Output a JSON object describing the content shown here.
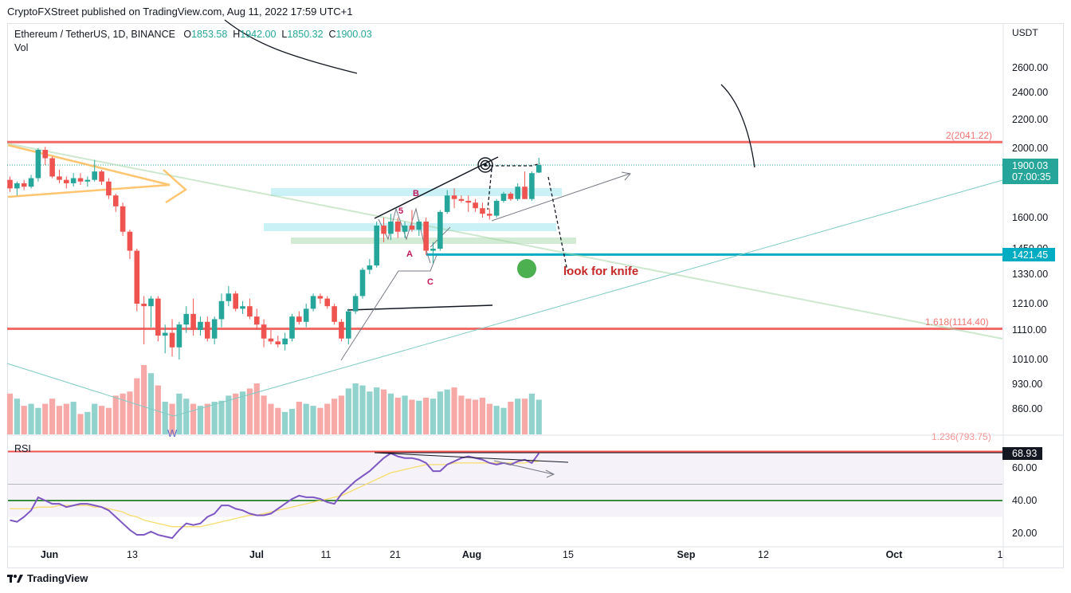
{
  "header": {
    "text": "CryptoFXStreet published on TradingView.com, Aug 11, 2022 17:59 UTC+1"
  },
  "legend": {
    "symbol": "Ethereum / TetherUS, 1D, BINANCE",
    "o_label": "O",
    "o": "1853.58",
    "h_label": "H",
    "h": "1942.00",
    "l_label": "L",
    "l": "1850.32",
    "c_label": "C",
    "c": "1900.03",
    "vol": "Vol"
  },
  "rsi_label": "RSI",
  "currency": "USDT",
  "footer": {
    "brand": "TradingView"
  },
  "colors": {
    "up": "#26a69a",
    "down": "#ef5350",
    "vol_up": "#92d2cc",
    "vol_down": "#f7a9a7",
    "rsi": "#7e57c2",
    "rsi_ma": "#f7dd6b",
    "resistance": "#ef5350",
    "support": "#00acc1"
  },
  "price_ticks": [
    "2600.00",
    "2400.00",
    "2200.00",
    "2000.00",
    "1900.00",
    "1600.00",
    "1450.00",
    "1330.00",
    "1210.00",
    "1110.00",
    "1010.00",
    "930.00",
    "860.00"
  ],
  "rsi_ticks": [
    "60.00",
    "40.00",
    "20.00"
  ],
  "date_ticks": [
    "Jun",
    "13",
    "Jul",
    "11",
    "21",
    "Aug",
    "15",
    "Sep",
    "12",
    "Oct",
    "1"
  ],
  "price_labels": {
    "last_price": "1900.03",
    "countdown": "07:00:35",
    "support": "1421.45",
    "rsi_value": "68.93"
  },
  "annotations": {
    "fib_top": "2(2041.22)",
    "fib_mid": "1.618(1114.40)",
    "fib_bottom": "1.236(793.75)",
    "knife": "look for knife",
    "wave_b": "B",
    "wave_a": "A",
    "wave_c": "C",
    "wave_5": "5",
    "wave_w": "W"
  },
  "chart_data": {
    "type": "candlestick",
    "title": "Ethereum / TetherUS, 1D, BINANCE",
    "currency": "USDT",
    "candles": [
      {
        "o": 1810,
        "h": 1830,
        "l": 1740,
        "c": 1760
      },
      {
        "o": 1760,
        "h": 1800,
        "l": 1720,
        "c": 1790
      },
      {
        "o": 1790,
        "h": 1810,
        "l": 1750,
        "c": 1770
      },
      {
        "o": 1770,
        "h": 1840,
        "l": 1760,
        "c": 1820
      },
      {
        "o": 1820,
        "h": 2000,
        "l": 1800,
        "c": 1990
      },
      {
        "o": 1990,
        "h": 2010,
        "l": 1900,
        "c": 1940
      },
      {
        "o": 1940,
        "h": 1950,
        "l": 1820,
        "c": 1830
      },
      {
        "o": 1830,
        "h": 1870,
        "l": 1790,
        "c": 1810
      },
      {
        "o": 1810,
        "h": 1830,
        "l": 1760,
        "c": 1790
      },
      {
        "o": 1790,
        "h": 1850,
        "l": 1770,
        "c": 1820
      },
      {
        "o": 1820,
        "h": 1850,
        "l": 1780,
        "c": 1800
      },
      {
        "o": 1800,
        "h": 1830,
        "l": 1770,
        "c": 1810
      },
      {
        "o": 1810,
        "h": 1930,
        "l": 1800,
        "c": 1860
      },
      {
        "o": 1860,
        "h": 1870,
        "l": 1780,
        "c": 1800
      },
      {
        "o": 1800,
        "h": 1820,
        "l": 1700,
        "c": 1720
      },
      {
        "o": 1720,
        "h": 1730,
        "l": 1630,
        "c": 1660
      },
      {
        "o": 1660,
        "h": 1680,
        "l": 1510,
        "c": 1530
      },
      {
        "o": 1530,
        "h": 1540,
        "l": 1400,
        "c": 1440
      },
      {
        "o": 1440,
        "h": 1450,
        "l": 1180,
        "c": 1210
      },
      {
        "o": 1210,
        "h": 1240,
        "l": 1060,
        "c": 1200
      },
      {
        "o": 1200,
        "h": 1240,
        "l": 1120,
        "c": 1230
      },
      {
        "o": 1230,
        "h": 1240,
        "l": 1070,
        "c": 1090
      },
      {
        "o": 1090,
        "h": 1130,
        "l": 1030,
        "c": 1100
      },
      {
        "o": 1100,
        "h": 1150,
        "l": 1020,
        "c": 1050
      },
      {
        "o": 1050,
        "h": 1140,
        "l": 1010,
        "c": 1130
      },
      {
        "o": 1130,
        "h": 1200,
        "l": 1100,
        "c": 1170
      },
      {
        "o": 1170,
        "h": 1230,
        "l": 1090,
        "c": 1110
      },
      {
        "o": 1110,
        "h": 1160,
        "l": 1090,
        "c": 1140
      },
      {
        "o": 1140,
        "h": 1160,
        "l": 1070,
        "c": 1080
      },
      {
        "o": 1080,
        "h": 1160,
        "l": 1060,
        "c": 1150
      },
      {
        "o": 1150,
        "h": 1250,
        "l": 1120,
        "c": 1220
      },
      {
        "o": 1220,
        "h": 1280,
        "l": 1200,
        "c": 1250
      },
      {
        "o": 1250,
        "h": 1260,
        "l": 1180,
        "c": 1190
      },
      {
        "o": 1190,
        "h": 1220,
        "l": 1170,
        "c": 1200
      },
      {
        "o": 1200,
        "h": 1230,
        "l": 1150,
        "c": 1160
      },
      {
        "o": 1160,
        "h": 1190,
        "l": 1110,
        "c": 1130
      },
      {
        "o": 1130,
        "h": 1150,
        "l": 1050,
        "c": 1080
      },
      {
        "o": 1080,
        "h": 1110,
        "l": 1060,
        "c": 1070
      },
      {
        "o": 1070,
        "h": 1090,
        "l": 1050,
        "c": 1060
      },
      {
        "o": 1060,
        "h": 1100,
        "l": 1040,
        "c": 1080
      },
      {
        "o": 1080,
        "h": 1170,
        "l": 1070,
        "c": 1160
      },
      {
        "o": 1160,
        "h": 1180,
        "l": 1130,
        "c": 1140
      },
      {
        "o": 1140,
        "h": 1210,
        "l": 1120,
        "c": 1190
      },
      {
        "o": 1190,
        "h": 1250,
        "l": 1180,
        "c": 1240
      },
      {
        "o": 1240,
        "h": 1250,
        "l": 1210,
        "c": 1230
      },
      {
        "o": 1230,
        "h": 1240,
        "l": 1190,
        "c": 1200
      },
      {
        "o": 1200,
        "h": 1210,
        "l": 1130,
        "c": 1140
      },
      {
        "o": 1140,
        "h": 1150,
        "l": 1070,
        "c": 1080
      },
      {
        "o": 1080,
        "h": 1190,
        "l": 1060,
        "c": 1180
      },
      {
        "o": 1180,
        "h": 1250,
        "l": 1170,
        "c": 1240
      },
      {
        "o": 1240,
        "h": 1360,
        "l": 1230,
        "c": 1350
      },
      {
        "o": 1350,
        "h": 1400,
        "l": 1330,
        "c": 1370
      },
      {
        "o": 1370,
        "h": 1580,
        "l": 1360,
        "c": 1560
      },
      {
        "o": 1560,
        "h": 1600,
        "l": 1480,
        "c": 1520
      },
      {
        "o": 1520,
        "h": 1620,
        "l": 1490,
        "c": 1580
      },
      {
        "o": 1580,
        "h": 1600,
        "l": 1500,
        "c": 1530
      },
      {
        "o": 1530,
        "h": 1580,
        "l": 1500,
        "c": 1560
      },
      {
        "o": 1560,
        "h": 1640,
        "l": 1530,
        "c": 1540
      },
      {
        "o": 1540,
        "h": 1590,
        "l": 1510,
        "c": 1580
      },
      {
        "o": 1580,
        "h": 1600,
        "l": 1420,
        "c": 1440
      },
      {
        "o": 1440,
        "h": 1480,
        "l": 1380,
        "c": 1450
      },
      {
        "o": 1450,
        "h": 1640,
        "l": 1440,
        "c": 1630
      },
      {
        "o": 1630,
        "h": 1750,
        "l": 1620,
        "c": 1720
      },
      {
        "o": 1720,
        "h": 1760,
        "l": 1650,
        "c": 1700
      },
      {
        "o": 1700,
        "h": 1720,
        "l": 1680,
        "c": 1690
      },
      {
        "o": 1690,
        "h": 1720,
        "l": 1630,
        "c": 1680
      },
      {
        "o": 1680,
        "h": 1700,
        "l": 1630,
        "c": 1650
      },
      {
        "o": 1650,
        "h": 1680,
        "l": 1600,
        "c": 1620
      },
      {
        "o": 1620,
        "h": 1650,
        "l": 1590,
        "c": 1610
      },
      {
        "o": 1610,
        "h": 1700,
        "l": 1600,
        "c": 1690
      },
      {
        "o": 1690,
        "h": 1740,
        "l": 1680,
        "c": 1730
      },
      {
        "o": 1730,
        "h": 1740,
        "l": 1690,
        "c": 1700
      },
      {
        "o": 1700,
        "h": 1790,
        "l": 1690,
        "c": 1770
      },
      {
        "o": 1770,
        "h": 1860,
        "l": 1700,
        "c": 1700
      },
      {
        "o": 1700,
        "h": 1860,
        "l": 1690,
        "c": 1850
      },
      {
        "o": 1853.58,
        "h": 1942.0,
        "l": 1850.32,
        "c": 1900.03
      }
    ],
    "volume": [
      40,
      35,
      28,
      30,
      26,
      30,
      35,
      28,
      30,
      32,
      20,
      22,
      30,
      28,
      26,
      38,
      40,
      42,
      55,
      68,
      60,
      48,
      32,
      30,
      40,
      35,
      30,
      28,
      30,
      32,
      33,
      38,
      40,
      42,
      45,
      50,
      38,
      30,
      26,
      22,
      25,
      32,
      30,
      28,
      26,
      30,
      35,
      38,
      45,
      50,
      48,
      42,
      46,
      44,
      40,
      36,
      38,
      34,
      33,
      36,
      35,
      42,
      44,
      46,
      38,
      35,
      34,
      36,
      30,
      28,
      26,
      32,
      35,
      35,
      40,
      34
    ],
    "levels": {
      "resistance_fib_2": 2041.22,
      "support": 1421.45,
      "fib_1618": 1114.4,
      "fib_1236": 793.75
    },
    "rsi": {
      "values": [
        28,
        27,
        30,
        34,
        42,
        40,
        38,
        38,
        36,
        37,
        38,
        38,
        37,
        36,
        34,
        30,
        26,
        22,
        19,
        19,
        21,
        19,
        18,
        17,
        22,
        26,
        25,
        26,
        30,
        32,
        37,
        37,
        35,
        34,
        32,
        31,
        31,
        32,
        35,
        38,
        41,
        43,
        42,
        42,
        41,
        39,
        38,
        44,
        48,
        52,
        55,
        58,
        62,
        66,
        68.9,
        67,
        66,
        66,
        65,
        63,
        58,
        58,
        62,
        64,
        66,
        67,
        66,
        65,
        63,
        62,
        63,
        62,
        64,
        65,
        63,
        68.93
      ],
      "ma_values": [
        35,
        35,
        35,
        35,
        36,
        36,
        36,
        37,
        37,
        37,
        37,
        37,
        36,
        36,
        35,
        34,
        33,
        31,
        30,
        28,
        27,
        26,
        25,
        24,
        24,
        24,
        24,
        24,
        25,
        26,
        27,
        28,
        29,
        30,
        31,
        31,
        32,
        33,
        34,
        35,
        36,
        37,
        38,
        39,
        40,
        41,
        42,
        43,
        45,
        47,
        49,
        51,
        53,
        55,
        57,
        58,
        59,
        60,
        61,
        62,
        62,
        62,
        62,
        63,
        63,
        63,
        63,
        63,
        63,
        63,
        63,
        63,
        63,
        63,
        64,
        64
      ],
      "overbought": 70,
      "oversold": 30,
      "ylim": [
        10,
        85
      ]
    },
    "x_ticks": [
      "Jun",
      "13",
      "Jul",
      "11",
      "21",
      "Aug",
      "15",
      "Sep",
      "12",
      "Oct",
      "1"
    ],
    "ylim": [
      780,
      2750
    ]
  }
}
